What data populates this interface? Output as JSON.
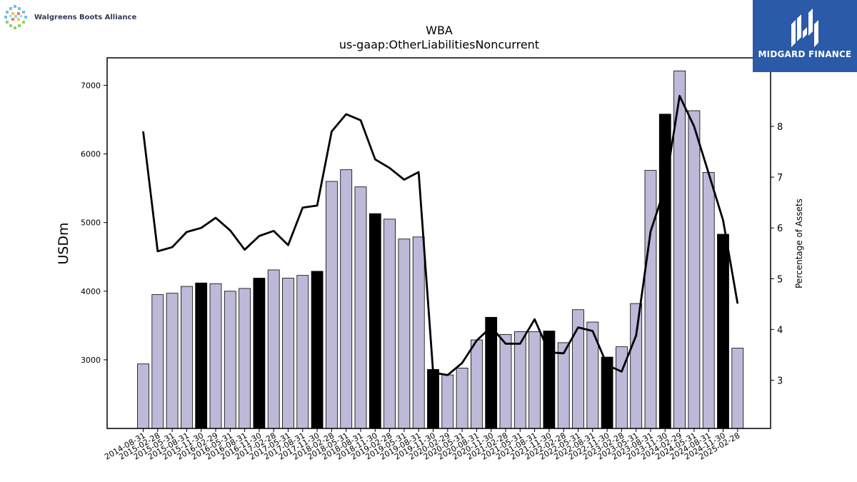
{
  "branding": {
    "company_logo_text": "Walgreens Boots Alliance",
    "publisher_logo_text": "MIDGARD FINANCE"
  },
  "colors": {
    "bar_normal": "#bdb9d9",
    "bar_highlight": "#000000",
    "line": "#000000",
    "publisher_bg": "#2a5aa8"
  },
  "chart_data": {
    "type": "bar",
    "title": "WBA",
    "subtitle": "us-gaap:OtherLiabilitiesNoncurrent",
    "ylabel": "USDm",
    "y2label": "Percentage of Assets",
    "ylim": [
      2000,
      7400
    ],
    "y2lim": [
      2.05,
      9.35
    ],
    "yticks": [
      3000,
      4000,
      5000,
      6000,
      7000
    ],
    "y2ticks": [
      3,
      4,
      5,
      6,
      7,
      8
    ],
    "grid": false,
    "categories": [
      "2014-08-31",
      "2015-02-28",
      "2015-05-31",
      "2015-08-31",
      "2015-11-30",
      "2016-02-29",
      "2016-05-31",
      "2016-08-31",
      "2016-11-30",
      "2017-02-28",
      "2017-05-31",
      "2017-08-31",
      "2017-11-30",
      "2018-02-28",
      "2018-05-31",
      "2018-08-31",
      "2018-11-30",
      "2019-02-28",
      "2019-05-31",
      "2019-08-31",
      "2019-11-30",
      "2020-02-29",
      "2020-05-31",
      "2020-08-31",
      "2020-11-30",
      "2021-02-28",
      "2021-05-31",
      "2021-08-31",
      "2021-11-30",
      "2022-02-28",
      "2022-05-31",
      "2022-08-31",
      "2022-11-30",
      "2023-02-28",
      "2023-05-31",
      "2023-08-31",
      "2023-11-30",
      "2024-02-29",
      "2024-05-31",
      "2024-08-31",
      "2024-11-30",
      "2025-02-28"
    ],
    "series": [
      {
        "kind": "bar",
        "values": [
          2940,
          3950,
          3970,
          4070,
          4120,
          4110,
          4000,
          4040,
          4190,
          4310,
          4190,
          4230,
          4290,
          5600,
          5770,
          5520,
          5130,
          5050,
          4760,
          4790,
          2860,
          2780,
          2880,
          3290,
          3620,
          3370,
          3410,
          3410,
          3420,
          3250,
          3730,
          3550,
          3040,
          3190,
          3820,
          5760,
          6580,
          7210,
          6630,
          5730,
          4830,
          3170
        ],
        "highlight": [
          false,
          false,
          false,
          false,
          true,
          false,
          false,
          false,
          true,
          false,
          false,
          false,
          true,
          false,
          false,
          false,
          true,
          false,
          false,
          false,
          true,
          false,
          false,
          false,
          true,
          false,
          false,
          false,
          true,
          false,
          false,
          false,
          true,
          false,
          false,
          false,
          true,
          false,
          false,
          false,
          true,
          false
        ]
      },
      {
        "kind": "line",
        "axis": "right",
        "values": [
          7.9,
          5.54,
          5.62,
          5.92,
          6.0,
          6.2,
          5.95,
          5.57,
          5.84,
          5.94,
          5.66,
          6.4,
          6.44,
          7.9,
          8.24,
          8.12,
          7.35,
          7.18,
          6.95,
          7.1,
          3.15,
          3.1,
          3.34,
          3.78,
          4.05,
          3.72,
          3.72,
          4.2,
          3.55,
          3.53,
          4.04,
          3.97,
          3.3,
          3.17,
          3.88,
          5.93,
          6.8,
          8.6,
          8.0,
          7.08,
          6.15,
          4.51
        ]
      }
    ]
  }
}
